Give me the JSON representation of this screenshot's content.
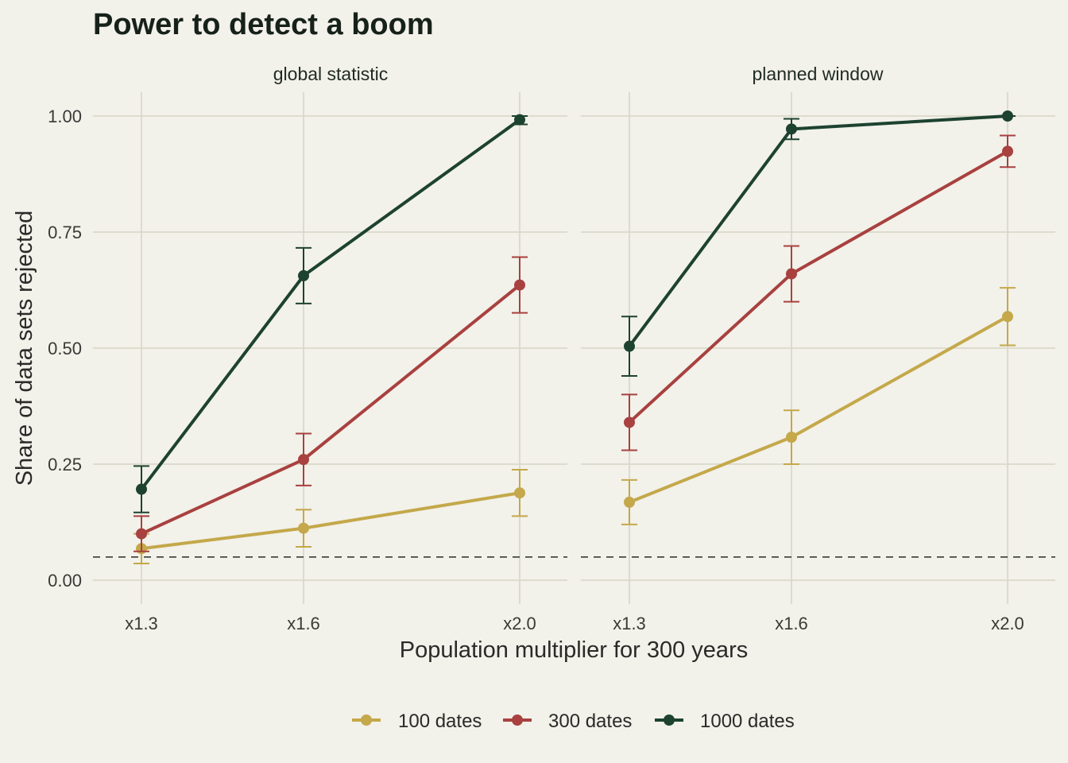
{
  "chart_data": {
    "type": "line",
    "title": "Power to detect a boom",
    "xlabel": "Population multiplier for 300 years",
    "ylabel": "Share of data sets rejected",
    "categories": [
      "x1.3",
      "x1.6",
      "x2.0"
    ],
    "x": [
      1.3,
      1.6,
      2.0
    ],
    "ylim": [
      -0.05,
      1.05
    ],
    "yticks": [
      0,
      0.25,
      0.5,
      0.75,
      1.0
    ],
    "ytick_labels": [
      "0.00",
      "0.25",
      "0.50",
      "0.75",
      "1.00"
    ],
    "reference_line": 0.05,
    "grid": true,
    "legend_position": "bottom",
    "panels": [
      {
        "name": "global statistic",
        "series": [
          {
            "name": "100 dates",
            "color": "#c4a84a",
            "values": [
              0.068,
              0.112,
              0.188
            ],
            "lower": [
              0.036,
              0.072,
              0.138
            ],
            "upper": [
              0.1,
              0.152,
              0.238
            ]
          },
          {
            "name": "300 dates",
            "color": "#a8413f",
            "values": [
              0.1,
              0.26,
              0.636
            ],
            "lower": [
              0.062,
              0.204,
              0.576
            ],
            "upper": [
              0.138,
              0.316,
              0.696
            ]
          },
          {
            "name": "1000 dates",
            "color": "#1d4230",
            "values": [
              0.196,
              0.656,
              0.992
            ],
            "lower": [
              0.146,
              0.596,
              0.982
            ],
            "upper": [
              0.246,
              0.716,
              1.0
            ]
          }
        ]
      },
      {
        "name": "planned window",
        "series": [
          {
            "name": "100 dates",
            "color": "#c4a84a",
            "values": [
              0.168,
              0.308,
              0.568
            ],
            "lower": [
              0.12,
              0.25,
              0.506
            ],
            "upper": [
              0.216,
              0.366,
              0.63
            ]
          },
          {
            "name": "300 dates",
            "color": "#a8413f",
            "values": [
              0.34,
              0.66,
              0.924
            ],
            "lower": [
              0.28,
              0.6,
              0.89
            ],
            "upper": [
              0.4,
              0.72,
              0.958
            ]
          },
          {
            "name": "1000 dates",
            "color": "#1d4230",
            "values": [
              0.504,
              0.972,
              1.0
            ],
            "lower": [
              0.44,
              0.95,
              1.0
            ],
            "upper": [
              0.568,
              0.994,
              1.0
            ]
          }
        ]
      }
    ]
  }
}
